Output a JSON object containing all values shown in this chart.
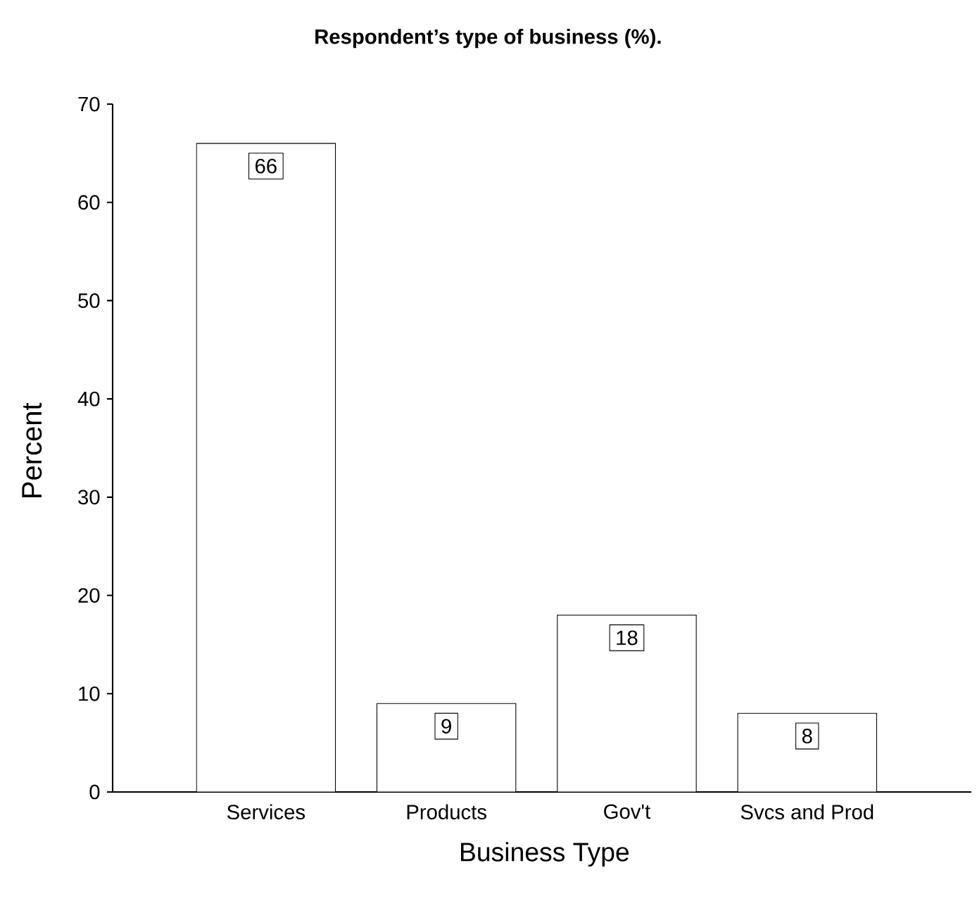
{
  "chart_data": {
    "type": "bar",
    "title": "Respondent’s type of business (%).",
    "xlabel": "Business Type",
    "ylabel": "Percent",
    "categories": [
      "Services",
      "Products",
      "Gov't",
      "Svcs and Prod"
    ],
    "values": [
      66,
      9,
      18,
      8
    ],
    "color": "#ffffff",
    "ylim": [
      0,
      70
    ],
    "yticks": [
      0,
      10,
      20,
      30,
      40,
      50,
      60,
      70
    ],
    "data_labels": true,
    "grid": false
  }
}
